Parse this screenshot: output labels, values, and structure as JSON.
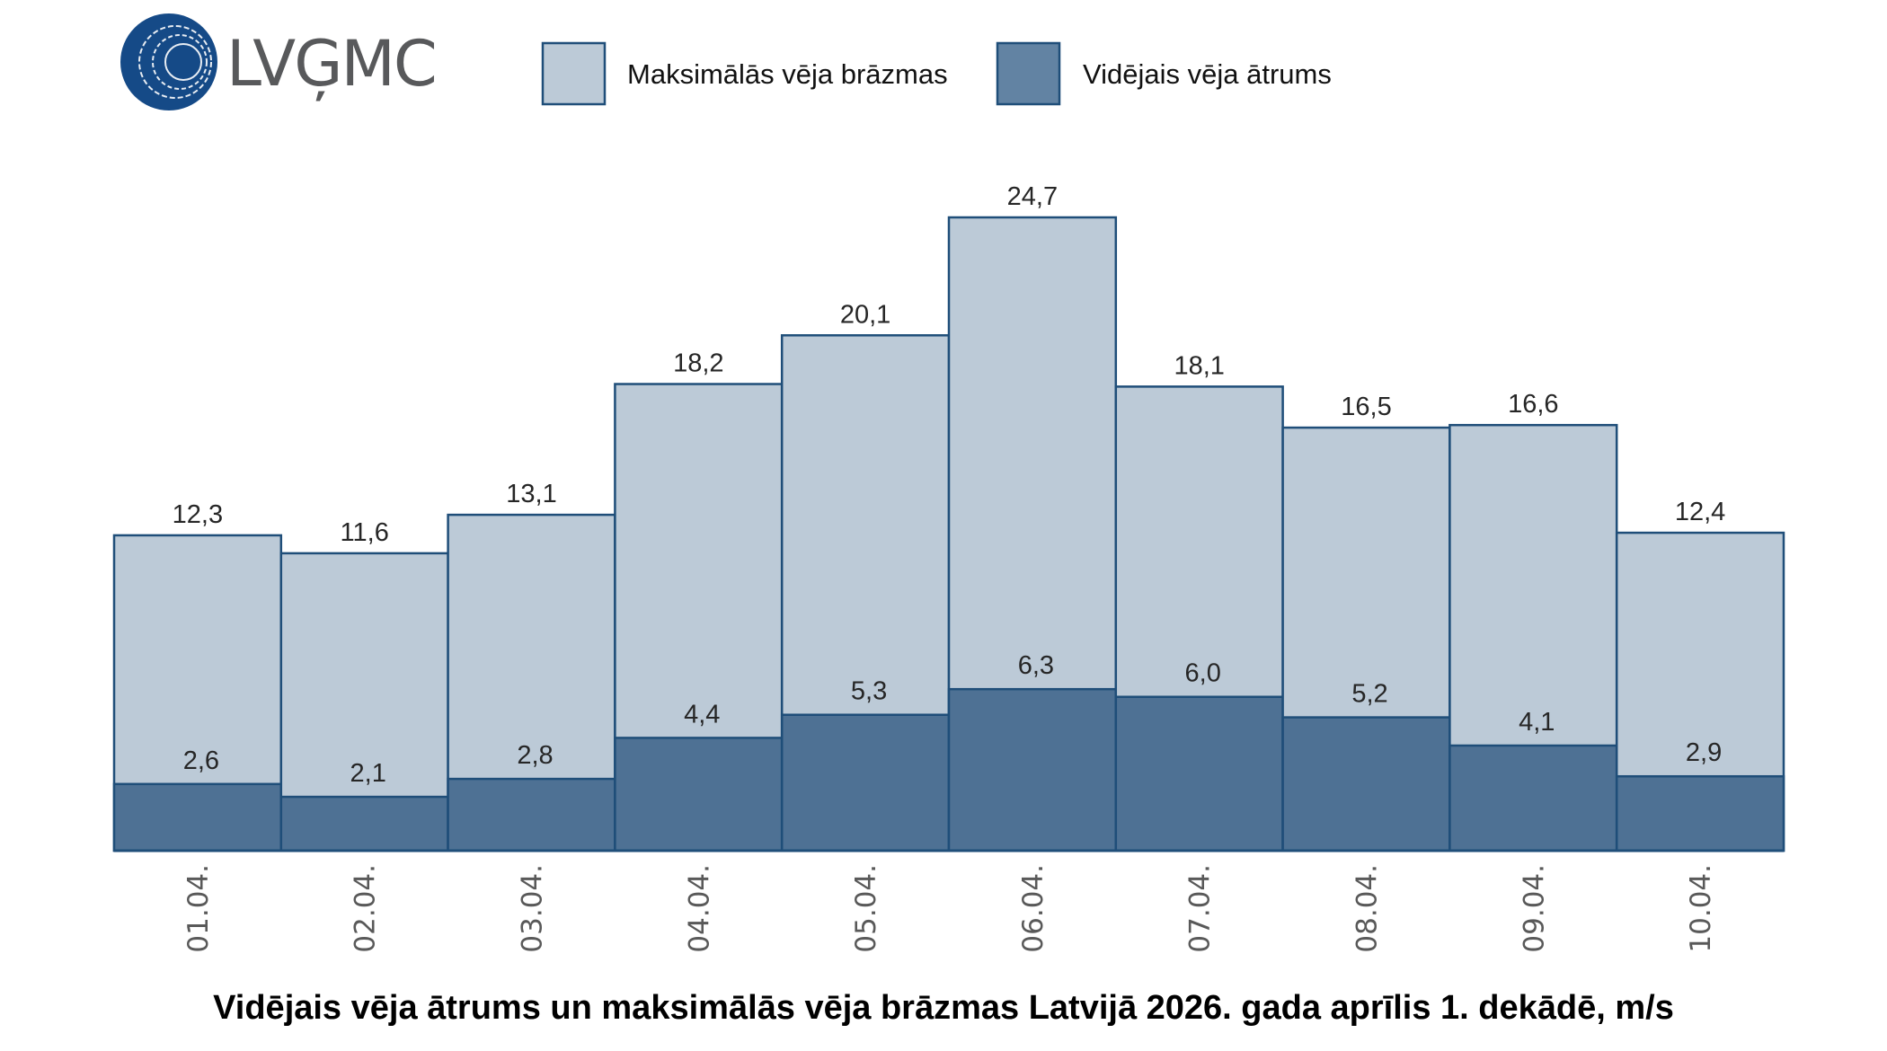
{
  "logo": {
    "text": "LVĢMC",
    "color": "#154a87"
  },
  "colors": {
    "max_gust": "#bccad7",
    "avg_speed": "#4e7194",
    "legend_avg": "#6283a3",
    "border": "#1f4e79"
  },
  "chart_data": {
    "type": "bar",
    "stacking": "overlay",
    "title": "Vidējais vēja ātrums un maksimālās vēja brāzmas Latvijā 2026. gada aprīlis 1. dekādē, m/s",
    "xlabel": "",
    "ylabel": "",
    "ylim": [
      0,
      26
    ],
    "grid": false,
    "legend_position": "top",
    "categories": [
      "01.04.",
      "02.04.",
      "03.04.",
      "04.04.",
      "05.04.",
      "06.04.",
      "07.04.",
      "08.04.",
      "09.04.",
      "10.04."
    ],
    "series": [
      {
        "name": "Maksimālās vēja brāzmas",
        "values": [
          12.3,
          11.6,
          13.1,
          18.2,
          20.1,
          24.7,
          18.1,
          16.5,
          16.6,
          12.4
        ],
        "labels": [
          "12,3",
          "11,6",
          "13,1",
          "18,2",
          "20,1",
          "24,7",
          "18,1",
          "16,5",
          "16,6",
          "12,4"
        ]
      },
      {
        "name": "Vidējais vēja ātrums",
        "values": [
          2.6,
          2.1,
          2.8,
          4.4,
          5.3,
          6.3,
          6.0,
          5.2,
          4.1,
          2.9
        ],
        "labels": [
          "2,6",
          "2,1",
          "2,8",
          "4,4",
          "5,3",
          "6,3",
          "6,0",
          "5,2",
          "4,1",
          "2,9"
        ]
      }
    ]
  }
}
